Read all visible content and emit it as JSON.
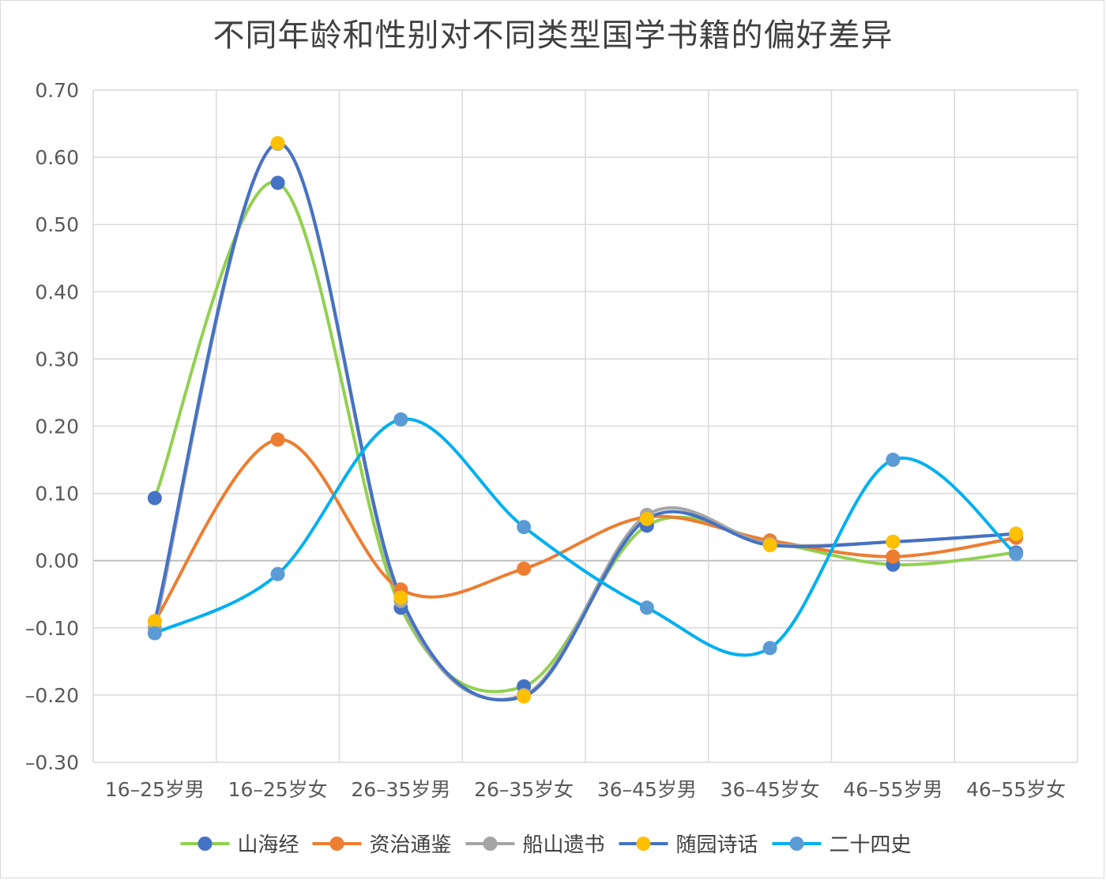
{
  "chart_data": {
    "type": "line",
    "title": "不同年龄和性别对不同类型国学书籍的偏好差异",
    "xlabel": "",
    "ylabel": "",
    "categories": [
      "16–25岁男",
      "16–25岁女",
      "26–35岁男",
      "26–35岁女",
      "36–45岁男",
      "36–45岁女",
      "46–55岁男",
      "46–55岁女"
    ],
    "ylim": [
      -0.3,
      0.7
    ],
    "yticks": [
      "0.70",
      "0.60",
      "0.50",
      "0.40",
      "0.30",
      "0.20",
      "0.10",
      "0.00",
      "–0.10",
      "–0.20",
      "–0.30"
    ],
    "yticks_values": [
      0.7,
      0.6,
      0.5,
      0.4,
      0.3,
      0.2,
      0.1,
      0.0,
      -0.1,
      -0.2,
      -0.3
    ],
    "grid": true,
    "legend_position": "bottom",
    "series": [
      {
        "name": "山海经",
        "line_color": "#92d050",
        "marker_color": "#4472c4",
        "values": [
          0.093,
          0.562,
          -0.07,
          -0.187,
          0.052,
          0.028,
          -0.006,
          0.012
        ]
      },
      {
        "name": "资治通鉴",
        "line_color": "#ed7d31",
        "marker_color": "#ed7d31",
        "values": [
          -0.09,
          0.18,
          -0.043,
          -0.012,
          0.065,
          0.03,
          0.006,
          0.034
        ]
      },
      {
        "name": "船山遗书",
        "line_color": "#a5a5a5",
        "marker_color": "#a5a5a5",
        "values": [
          -0.1,
          0.62,
          -0.06,
          -0.2,
          0.068,
          0.025,
          0.028,
          0.04
        ]
      },
      {
        "name": "随园诗话",
        "line_color": "#4472c4",
        "marker_color": "#ffc000",
        "values": [
          -0.09,
          0.621,
          -0.055,
          -0.202,
          0.062,
          0.023,
          0.028,
          0.04
        ]
      },
      {
        "name": "二十四史",
        "line_color": "#00b0f0",
        "marker_color": "#5b9bd5",
        "values": [
          -0.108,
          -0.02,
          0.21,
          0.05,
          -0.07,
          -0.13,
          0.15,
          0.01
        ]
      }
    ]
  }
}
